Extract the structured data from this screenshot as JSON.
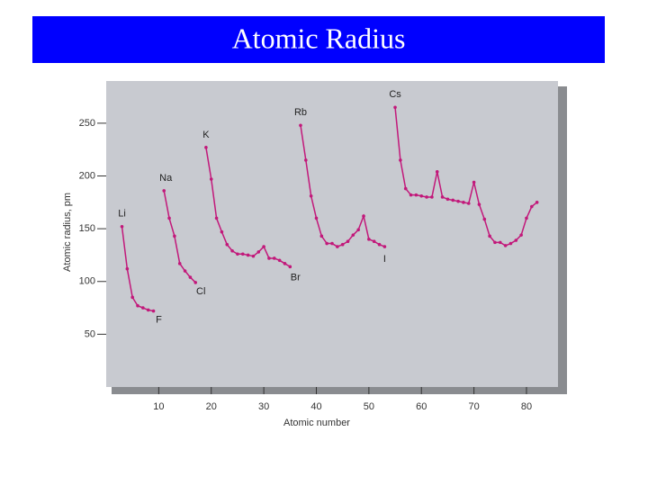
{
  "chart_data": {
    "type": "line",
    "title": "Atomic Radius",
    "x_label": "Atomic number",
    "y_label": "Atomic radius, pm",
    "x": [
      3,
      4,
      5,
      6,
      7,
      8,
      9,
      10,
      11,
      12,
      13,
      14,
      15,
      16,
      17,
      18,
      19,
      20,
      21,
      22,
      23,
      24,
      25,
      26,
      27,
      28,
      29,
      30,
      31,
      32,
      33,
      34,
      35,
      36,
      37,
      38,
      39,
      40,
      41,
      42,
      43,
      44,
      45,
      46,
      47,
      48,
      49,
      50,
      51,
      52,
      53,
      54,
      55,
      56,
      57,
      58,
      59,
      60,
      61,
      62,
      63,
      64,
      65,
      66,
      67,
      68,
      69,
      70,
      71,
      72,
      73,
      74,
      75,
      76,
      77,
      78,
      79,
      80,
      81,
      82
    ],
    "values": [
      152,
      112,
      85,
      77,
      75,
      73,
      72,
      null,
      186,
      160,
      143,
      117,
      110,
      104,
      99,
      null,
      227,
      197,
      160,
      147,
      135,
      129,
      126,
      126,
      125,
      124,
      128,
      133,
      122,
      122,
      120,
      117,
      114,
      null,
      248,
      215,
      181,
      160,
      143,
      136,
      136,
      133,
      135,
      138,
      144,
      149,
      162,
      140,
      138,
      135,
      133,
      null,
      265,
      215,
      188,
      182,
      182,
      181,
      180,
      180,
      204,
      180,
      178,
      177,
      176,
      175,
      174,
      194,
      173,
      159,
      143,
      137,
      137,
      134,
      136,
      139,
      144,
      160,
      171,
      175
    ],
    "color": "#c2187a",
    "annotations": [
      "Li",
      "Na",
      "K",
      "Rb",
      "Cs",
      "F",
      "Cl",
      "Br",
      "I"
    ],
    "xlim": [
      0,
      86
    ],
    "ylim": [
      0,
      290
    ],
    "xticks": [
      10,
      20,
      30,
      40,
      50,
      60,
      70,
      80
    ],
    "yticks": [
      50,
      100,
      150,
      200,
      250
    ]
  }
}
